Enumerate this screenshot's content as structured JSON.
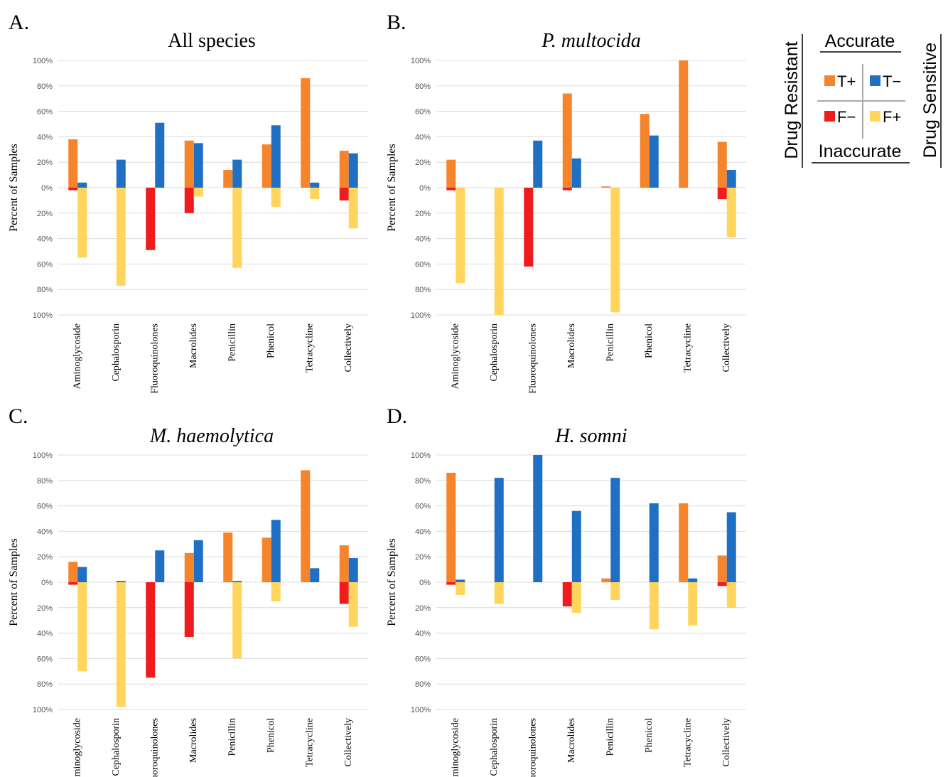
{
  "legend": {
    "accurate": "Accurate",
    "inaccurate": "Inaccurate",
    "drug_resistant": "Drug Resistant",
    "drug_sensitive": "Drug Sensitive",
    "entries": [
      {
        "label": "T+",
        "color": "#f5842b"
      },
      {
        "label": "T−",
        "color": "#1f6fc5"
      },
      {
        "label": "F−",
        "color": "#ee1c1c"
      },
      {
        "label": "F+",
        "color": "#ffd55e"
      }
    ]
  },
  "colors": {
    "tp": "#f5842b",
    "tn": "#1f6fc5",
    "fn": "#ee1c1c",
    "fp": "#ffd55e",
    "grid": "#dcdcdc"
  },
  "chart_data": [
    {
      "type": "bar",
      "panel": "A.",
      "title": "All species",
      "title_italic": false,
      "ylabel": "Percent of Samples",
      "ylim": [
        -100,
        100
      ],
      "yticks": [
        "100%",
        "80%",
        "60%",
        "40%",
        "20%",
        "0%",
        "20%",
        "40%",
        "60%",
        "80%",
        "100%"
      ],
      "grid": true,
      "categories": [
        "Aminoglycoside",
        "Cephalosporin",
        "Fluoroquinolones",
        "Macrolides",
        "Penicillin",
        "Phenicol",
        "Tetracycline",
        "Collectively"
      ],
      "series": [
        {
          "key": "tp",
          "name": "T+",
          "values": [
            38,
            0,
            0,
            37,
            14,
            34,
            86,
            29
          ]
        },
        {
          "key": "tn",
          "name": "T−",
          "values": [
            4,
            22,
            51,
            35,
            22,
            49,
            4,
            27
          ]
        },
        {
          "key": "fn",
          "name": "F−",
          "values": [
            -2,
            0,
            -49,
            -20,
            0,
            0,
            0,
            -10
          ]
        },
        {
          "key": "fp",
          "name": "F+",
          "values": [
            -55,
            -77,
            0,
            -7,
            -63,
            -15,
            -9,
            -32
          ]
        }
      ]
    },
    {
      "type": "bar",
      "panel": "B.",
      "title": "P. multocida",
      "title_italic": true,
      "ylabel": "Percent of Samples",
      "ylim": [
        -100,
        100
      ],
      "yticks": [
        "100%",
        "80%",
        "60%",
        "40%",
        "20%",
        "0%",
        "20%",
        "40%",
        "60%",
        "80%",
        "100%"
      ],
      "grid": true,
      "categories": [
        "Aminoglycoside",
        "Cephalosporin",
        "Fluoroquinolones",
        "Macrolides",
        "Penicillin",
        "Phenicol",
        "Tetracycline",
        "Collectively"
      ],
      "series": [
        {
          "key": "tp",
          "name": "T+",
          "values": [
            22,
            0,
            0,
            74,
            1,
            58,
            100,
            36
          ]
        },
        {
          "key": "tn",
          "name": "T−",
          "values": [
            0,
            0,
            37,
            23,
            0,
            41,
            0,
            14
          ]
        },
        {
          "key": "fn",
          "name": "F−",
          "values": [
            -2,
            0,
            -62,
            -2,
            0,
            0,
            0,
            -9
          ]
        },
        {
          "key": "fp",
          "name": "F+",
          "values": [
            -75,
            -100,
            0,
            0,
            -98,
            0,
            0,
            -39
          ]
        }
      ]
    },
    {
      "type": "bar",
      "panel": "C.",
      "title": "M. haemolytica",
      "title_italic": true,
      "ylabel": "Percent of Samples",
      "ylim": [
        -100,
        100
      ],
      "yticks": [
        "100%",
        "80%",
        "60%",
        "40%",
        "20%",
        "0%",
        "20%",
        "40%",
        "60%",
        "80%",
        "100%"
      ],
      "grid": true,
      "categories": [
        "Aminoglycoside",
        "Cephalosporin",
        "Fluoroquinolones",
        "Macrolides",
        "Penicillin",
        "Phenicol",
        "Tetracycline",
        "Collectively"
      ],
      "series": [
        {
          "key": "tp",
          "name": "T+",
          "values": [
            16,
            0,
            0,
            23,
            39,
            35,
            88,
            29
          ]
        },
        {
          "key": "tn",
          "name": "T−",
          "values": [
            12,
            1,
            25,
            33,
            1,
            49,
            11,
            19
          ]
        },
        {
          "key": "fn",
          "name": "F−",
          "values": [
            -2,
            0,
            -75,
            -43,
            0,
            0,
            0,
            -17
          ]
        },
        {
          "key": "fp",
          "name": "F+",
          "values": [
            -70,
            -98,
            0,
            0,
            -60,
            -15,
            0,
            -35
          ]
        }
      ]
    },
    {
      "type": "bar",
      "panel": "D.",
      "title": "H. somni",
      "title_italic": true,
      "ylabel": "Percent of Samples",
      "ylim": [
        -100,
        100
      ],
      "yticks": [
        "100%",
        "80%",
        "60%",
        "40%",
        "20%",
        "0%",
        "20%",
        "40%",
        "60%",
        "80%",
        "100%"
      ],
      "grid": true,
      "categories": [
        "Aminoglycoside",
        "Cephalosporin",
        "Fluoroquinolones",
        "Macrolides",
        "Penicillin",
        "Phenicol",
        "Tetracycline",
        "Collectively"
      ],
      "series": [
        {
          "key": "tp",
          "name": "T+",
          "values": [
            86,
            0,
            0,
            0,
            3,
            0,
            62,
            21
          ]
        },
        {
          "key": "tn",
          "name": "T−",
          "values": [
            2,
            82,
            100,
            56,
            82,
            62,
            3,
            55
          ]
        },
        {
          "key": "fn",
          "name": "F−",
          "values": [
            -2,
            0,
            0,
            -19,
            0,
            0,
            0,
            -3
          ]
        },
        {
          "key": "fp",
          "name": "F+",
          "values": [
            -10,
            -17,
            0,
            -24,
            -14,
            -37,
            -34,
            -20
          ]
        }
      ]
    }
  ]
}
